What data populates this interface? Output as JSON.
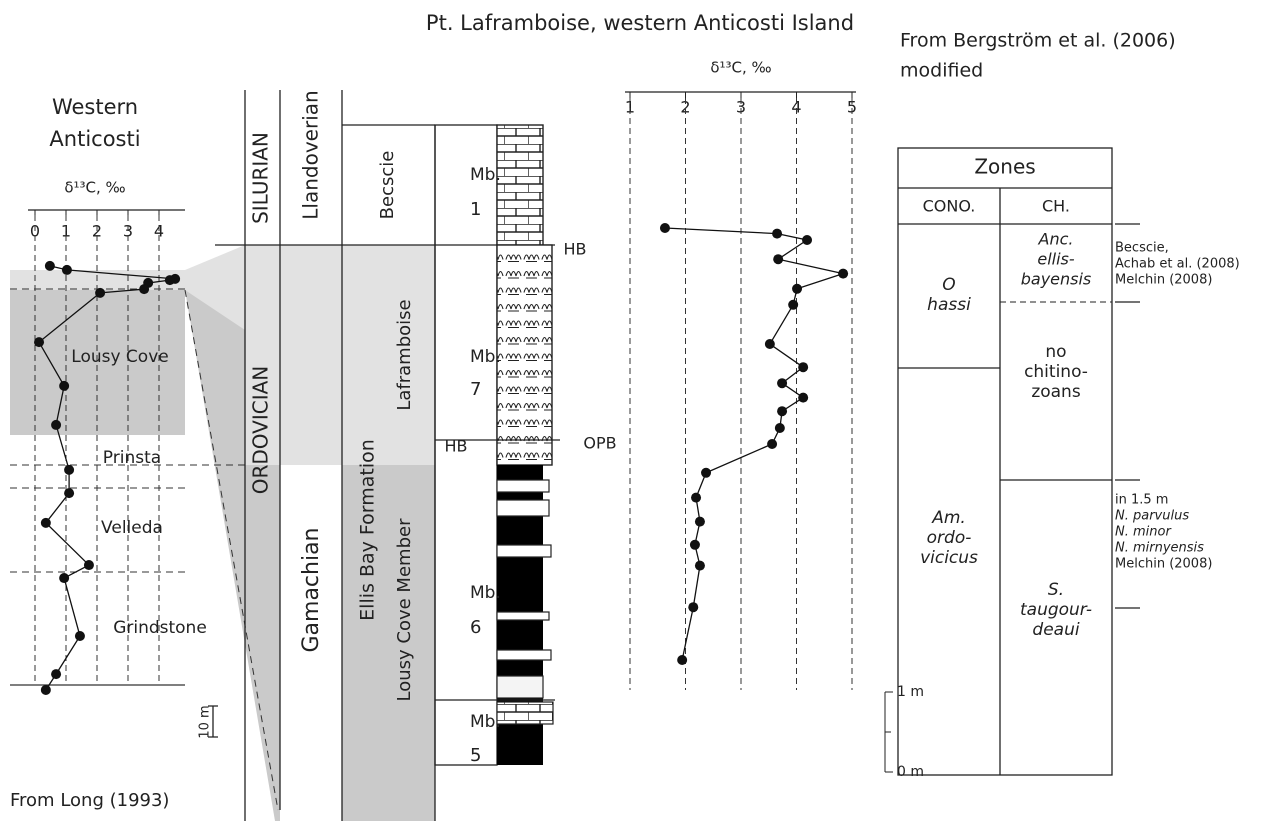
{
  "chart_data": [
    {
      "type": "line",
      "xlabel": "δ¹³C, ‰",
      "color": "#111111",
      "x": [
        0.48,
        1.03,
        4.52,
        4.35,
        3.65,
        3.52,
        2.1,
        0.13,
        0.94,
        0.68,
        1.1,
        1.1,
        0.35,
        1.74,
        0.94,
        1.45,
        0.68,
        0.35
      ],
      "values": [
        135.2,
        133.9,
        131.0,
        130.6,
        129.7,
        127.7,
        126.5,
        110.6,
        96.5,
        83.9,
        69.4,
        61.9,
        52.3,
        38.7,
        34.5,
        15.8,
        3.5,
        -1.6
      ],
      "xlim": [
        -0.1,
        4.8
      ],
      "xticks": [
        0,
        1,
        2,
        3,
        4
      ],
      "ylim": [
        -5,
        155
      ],
      "grid": true
    },
    {
      "type": "line",
      "xlabel": "δ¹³C, ‰",
      "color": "#111111",
      "x": [
        1.63,
        3.65,
        4.19,
        3.67,
        4.84,
        4.01,
        3.94,
        3.52,
        4.12,
        3.74,
        4.12,
        3.74,
        3.7,
        3.56,
        2.37,
        2.19,
        2.26,
        2.17,
        2.26,
        2.14,
        1.94
      ],
      "values": [
        6.8,
        6.73,
        6.65,
        6.41,
        6.23,
        6.04,
        5.84,
        5.35,
        5.06,
        4.86,
        4.68,
        4.51,
        4.3,
        4.1,
        3.74,
        3.43,
        3.13,
        2.84,
        2.58,
        2.06,
        1.4
      ],
      "xlim": [
        0.91,
        5.05
      ],
      "xticks": [
        1,
        2,
        3,
        4,
        5
      ],
      "ylim": [
        0,
        9
      ],
      "yticks": [
        {
          "value": 0,
          "label": "0 m"
        },
        {
          "value": 1,
          "label": "1 m"
        }
      ],
      "grid": true
    }
  ],
  "figure": {
    "title": "Pt. Laframboise, western Anticosti Island",
    "left_title": [
      "Western",
      "Anticosti"
    ],
    "left_source": "From Long (1993)",
    "left_scale": "10 m",
    "left_units": [
      "Lousy Cove",
      "Prinsta",
      "Velleda",
      "Grindstone"
    ],
    "system": [
      "SILURIAN",
      "ORDOVICIAN"
    ],
    "stage": [
      "Llandoverian",
      "Gamachian"
    ],
    "formation": [
      "Becscie",
      "Ellis Bay Formation"
    ],
    "member": [
      "Laframboise",
      "Lousy Cove Member"
    ],
    "mbs": [
      {
        "label": "Mb.",
        "number": "1"
      },
      {
        "label": "Mb.",
        "number": "7"
      },
      {
        "label": "Mb.",
        "number": "6"
      },
      {
        "label": "Mb.",
        "number": "5"
      }
    ],
    "hb": [
      "HB",
      "HB"
    ],
    "opb": "OPB",
    "right_source": [
      "From Bergström et al. (2006)",
      "modified"
    ],
    "zones": {
      "title": "Zones",
      "headers": [
        "CONO.",
        "CH."
      ],
      "cono": [
        [
          "O",
          "hassi"
        ],
        [
          "Am.",
          "ordo-",
          "vicicus"
        ]
      ],
      "ch": [
        [
          "Anc.",
          "ellis-",
          "bayensis"
        ],
        [
          "no",
          "chitino-",
          "zoans"
        ],
        [
          "S.",
          "taugour-",
          "deaui"
        ]
      ]
    },
    "notes": [
      [
        "Becscie,",
        "Achab et al. (2008)",
        "Melchin (2008)"
      ],
      [
        "in 1.5 m",
        "N. parvulus",
        "N. minor",
        "N. mirnyensis",
        "Melchin (2008)"
      ]
    ]
  }
}
